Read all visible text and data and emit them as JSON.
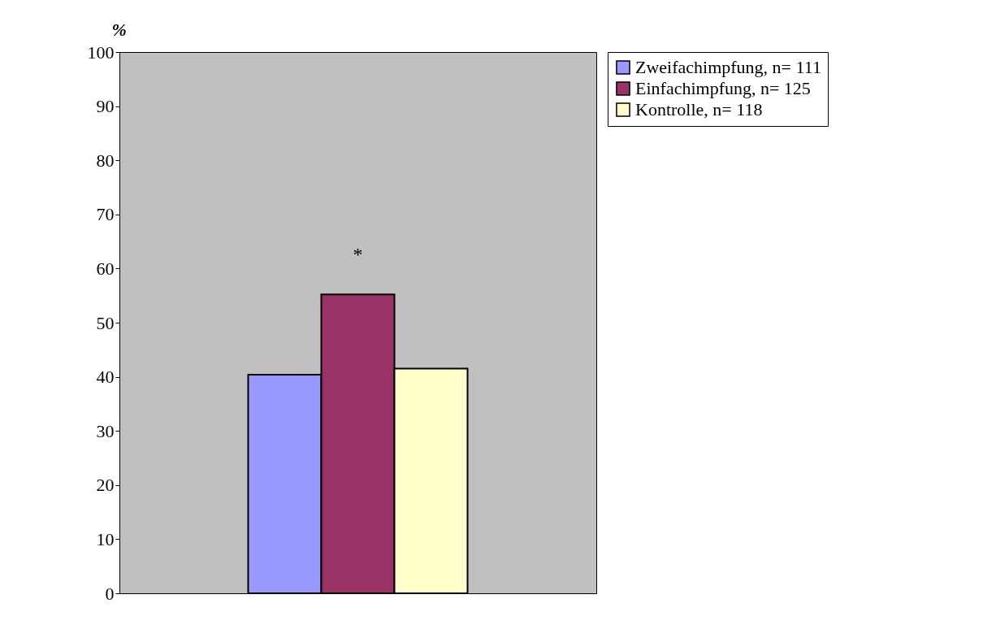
{
  "chart_data": {
    "type": "bar",
    "ylabel": "%",
    "categories": [
      null
    ],
    "series": [
      {
        "name": "Zweifachimpfung, n= 111",
        "color": "#9999ff",
        "values": [
          40.4
        ]
      },
      {
        "name": "Einfachimpfung, n= 125",
        "color": "#993366",
        "values": [
          55.2
        ]
      },
      {
        "name": "Kontrolle, n= 118",
        "color": "#ffffcc",
        "values": [
          41.5
        ]
      }
    ],
    "ylim": [
      0,
      100
    ],
    "yticks": [
      0,
      10,
      20,
      30,
      40,
      50,
      60,
      70,
      80,
      90,
      100
    ],
    "annotations": [
      "*"
    ],
    "grid": false,
    "legend": "right"
  }
}
